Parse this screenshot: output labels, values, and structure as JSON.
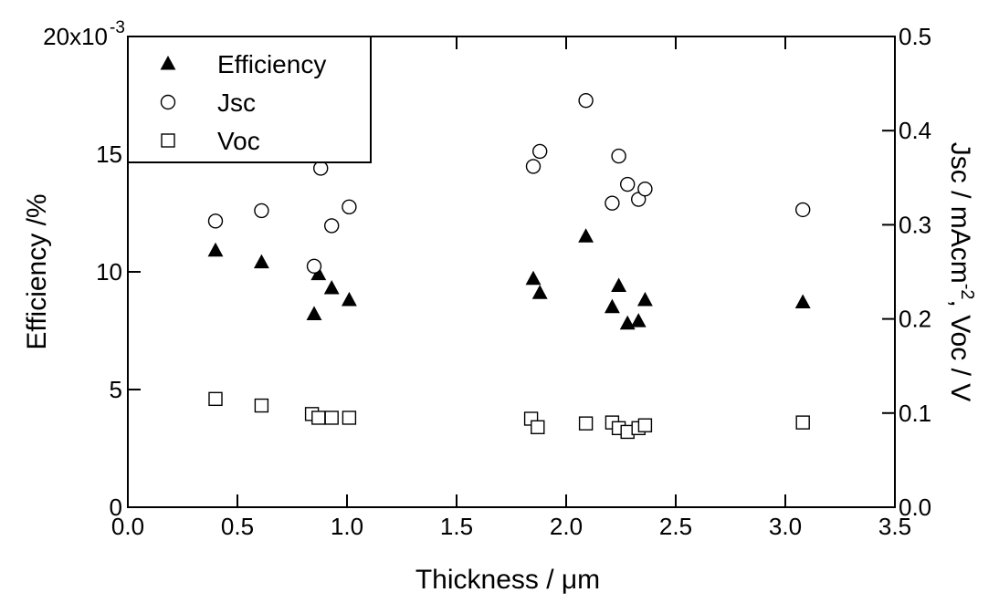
{
  "chart_data": {
    "type": "scatter",
    "x_axis": {
      "label": "Thickness / μm",
      "range": [
        0.0,
        3.5
      ],
      "ticks": [
        "0.0",
        "0.5",
        "1.0",
        "1.5",
        "2.0",
        "2.5",
        "3.0",
        "3.5"
      ]
    },
    "y_axis_left": {
      "label": "Efficiency /%",
      "range": [
        0,
        0.02
      ],
      "ticks": [
        "0",
        "5",
        "10",
        "15",
        "20x10"
      ],
      "exponent": "-3"
    },
    "y_axis_right": {
      "label_main": "Jsc / mAcm",
      "label_exp": "-2",
      "label_tail": ", Voc / V",
      "range": [
        0.0,
        0.5
      ],
      "ticks": [
        "0.0",
        "0.1",
        "0.2",
        "0.3",
        "0.4",
        "0.5"
      ]
    },
    "grid": false,
    "legend": {
      "position": "top-left",
      "entries": [
        "Efficiency",
        "Jsc",
        "Voc"
      ]
    },
    "series": [
      {
        "name": "Efficiency",
        "marker": "filled-triangle",
        "axis": "left",
        "points": [
          [
            0.4,
            0.0109
          ],
          [
            0.61,
            0.0104
          ],
          [
            0.85,
            0.0082
          ],
          [
            0.87,
            0.0099
          ],
          [
            0.93,
            0.0093
          ],
          [
            1.01,
            0.0088
          ],
          [
            1.85,
            0.0097
          ],
          [
            1.88,
            0.0091
          ],
          [
            2.09,
            0.0115
          ],
          [
            2.21,
            0.0085
          ],
          [
            2.24,
            0.0094
          ],
          [
            2.28,
            0.0078
          ],
          [
            2.33,
            0.0079
          ],
          [
            2.36,
            0.0088
          ],
          [
            3.08,
            0.0087
          ]
        ]
      },
      {
        "name": "Jsc",
        "marker": "open-circle",
        "axis": "right",
        "points": [
          [
            0.4,
            0.304
          ],
          [
            0.61,
            0.315
          ],
          [
            0.85,
            0.256
          ],
          [
            0.88,
            0.36
          ],
          [
            0.93,
            0.299
          ],
          [
            1.01,
            0.319
          ],
          [
            1.85,
            0.362
          ],
          [
            1.88,
            0.378
          ],
          [
            2.09,
            0.432
          ],
          [
            2.21,
            0.323
          ],
          [
            2.24,
            0.373
          ],
          [
            2.28,
            0.343
          ],
          [
            2.33,
            0.327
          ],
          [
            2.36,
            0.338
          ],
          [
            3.08,
            0.316
          ]
        ]
      },
      {
        "name": "Voc",
        "marker": "open-square",
        "axis": "right",
        "points": [
          [
            0.4,
            0.115
          ],
          [
            0.61,
            0.108
          ],
          [
            0.84,
            0.099
          ],
          [
            0.87,
            0.095
          ],
          [
            0.93,
            0.095
          ],
          [
            1.01,
            0.095
          ],
          [
            1.84,
            0.094
          ],
          [
            1.87,
            0.085
          ],
          [
            2.09,
            0.089
          ],
          [
            2.21,
            0.09
          ],
          [
            2.24,
            0.084
          ],
          [
            2.28,
            0.08
          ],
          [
            2.33,
            0.084
          ],
          [
            2.36,
            0.087
          ],
          [
            3.08,
            0.09
          ]
        ]
      }
    ]
  }
}
